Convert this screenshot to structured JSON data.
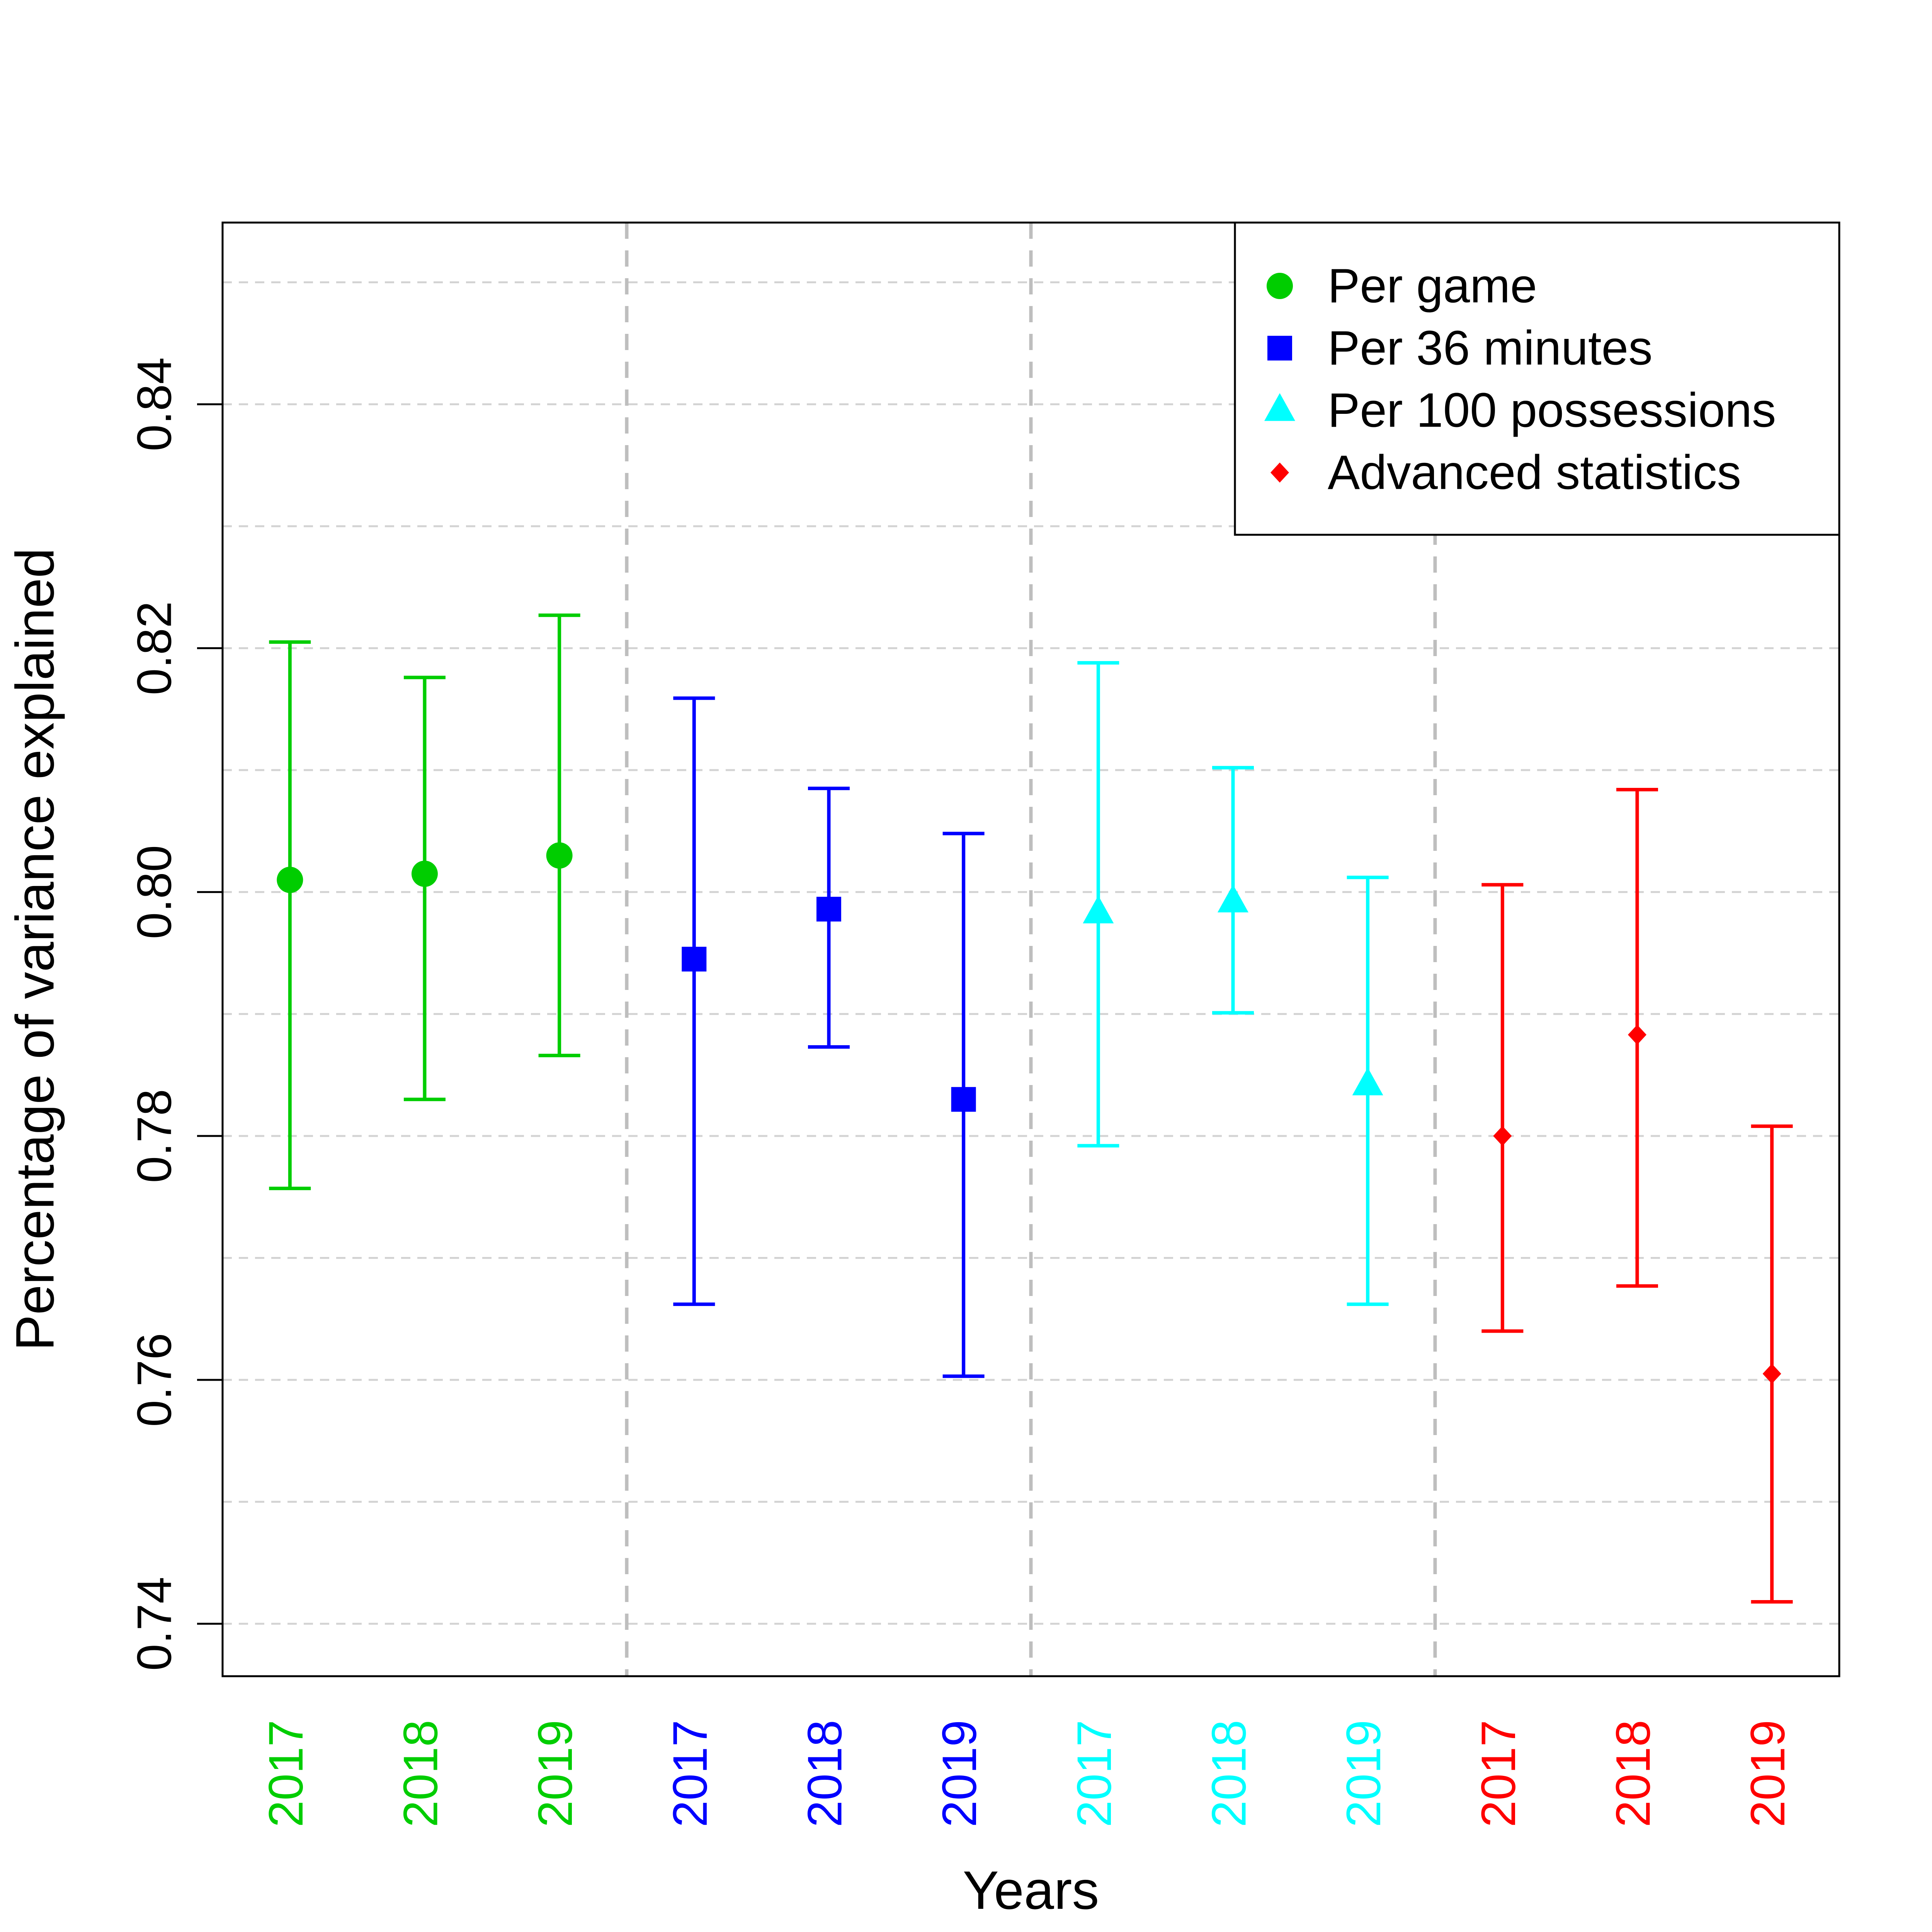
{
  "chart_data": {
    "type": "scatter",
    "title": "",
    "xlabel": "Years",
    "ylabel": "Percentage of variance explained",
    "ylim": [
      0.7357,
      0.8549
    ],
    "yticks": [
      0.74,
      0.76,
      0.78,
      0.8,
      0.82,
      0.84
    ],
    "ytick_labels": [
      "0.74",
      "0.76",
      "0.78",
      "0.80",
      "0.82",
      "0.84"
    ],
    "minor_grid_y": [
      0.75,
      0.77,
      0.79,
      0.81,
      0.83,
      0.85
    ],
    "grid": true,
    "legend_position": "top-right",
    "groups": [
      {
        "name": "Per game",
        "color": "#00CD00",
        "marker": "circle",
        "categories": [
          "2017",
          "2018",
          "2019"
        ],
        "values": [
          0.801,
          0.8015,
          0.803
        ],
        "lower": [
          0.7757,
          0.783,
          0.7866
        ],
        "upper": [
          0.8205,
          0.8176,
          0.8227
        ]
      },
      {
        "name": "Per 36 minutes",
        "color": "#0000FF",
        "marker": "square",
        "categories": [
          "2017",
          "2018",
          "2019"
        ],
        "values": [
          0.7945,
          0.7986,
          0.783
        ],
        "lower": [
          0.7662,
          0.7873,
          0.7603
        ],
        "upper": [
          0.8159,
          0.8085,
          0.8048
        ]
      },
      {
        "name": "Per 100 possessions",
        "color": "#00FFFF",
        "marker": "triangle",
        "categories": [
          "2017",
          "2018",
          "2019"
        ],
        "values": [
          0.7983,
          0.7992,
          0.7842
        ],
        "lower": [
          0.7792,
          0.7901,
          0.7662
        ],
        "upper": [
          0.8188,
          0.8102,
          0.8012
        ]
      },
      {
        "name": "Advanced statistics",
        "color": "#FF0000",
        "marker": "diamond",
        "categories": [
          "2017",
          "2018",
          "2019"
        ],
        "values": [
          0.78,
          0.7883,
          0.7605
        ],
        "lower": [
          0.764,
          0.7677,
          0.7418
        ],
        "upper": [
          0.8006,
          0.8084,
          0.7808
        ]
      }
    ]
  }
}
